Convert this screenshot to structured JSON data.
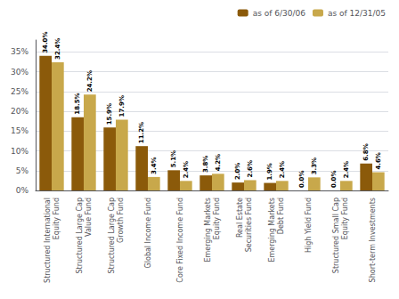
{
  "chart_data": {
    "type": "bar",
    "categories": [
      "Structured International\nEquity Fund",
      "Structured Large Cap\nValue Fund",
      "Structured Large Cap\nGrowth Fund",
      "Global Income Fund",
      "Core Fixed Income Fund",
      "Emerging Markets\nEquity Fund",
      "Real Estate\nSecurities Fund",
      "Emerging Markets\nDebt Fund",
      "High Yield Fund",
      "Structured Small Cap\nEquity Fund",
      "Short-term Investments"
    ],
    "series": [
      {
        "name": "as of 6/30/06",
        "color": "#8B5A0A",
        "values": [
          34.0,
          18.5,
          15.9,
          11.2,
          5.1,
          3.8,
          2.0,
          1.9,
          0.0,
          0.0,
          6.8
        ],
        "value_labels": [
          "34.0%",
          "18.5%",
          "15.9%",
          "11.2%",
          "5.1%",
          "3.8%",
          "2.0%",
          "1.9%",
          "0.0%",
          "0.0%",
          "6.8%"
        ]
      },
      {
        "name": "as of 12/31/05",
        "color": "#C8A84B",
        "values": [
          32.4,
          24.2,
          17.9,
          3.4,
          2.4,
          4.2,
          2.6,
          2.4,
          3.3,
          2.4,
          4.6
        ],
        "value_labels": [
          "32.4%",
          "24.2%",
          "17.9%",
          "3.4%",
          "2.4%",
          "4.2%",
          "2.6%",
          "2.4%",
          "3.3%",
          "2.4%",
          "4.6%"
        ]
      }
    ],
    "ylim": [
      0,
      38
    ],
    "yticks": [
      {
        "value": 0,
        "label": "0%"
      },
      {
        "value": 5,
        "label": "5%"
      },
      {
        "value": 10,
        "label": "10%"
      },
      {
        "value": 15,
        "label": "15%"
      },
      {
        "value": 20,
        "label": "20%"
      },
      {
        "value": 25,
        "label": "25%"
      },
      {
        "value": 30,
        "label": "30%"
      },
      {
        "value": 35,
        "label": "35%"
      }
    ],
    "grid": true,
    "legend": "upper right",
    "data_labels": true
  }
}
